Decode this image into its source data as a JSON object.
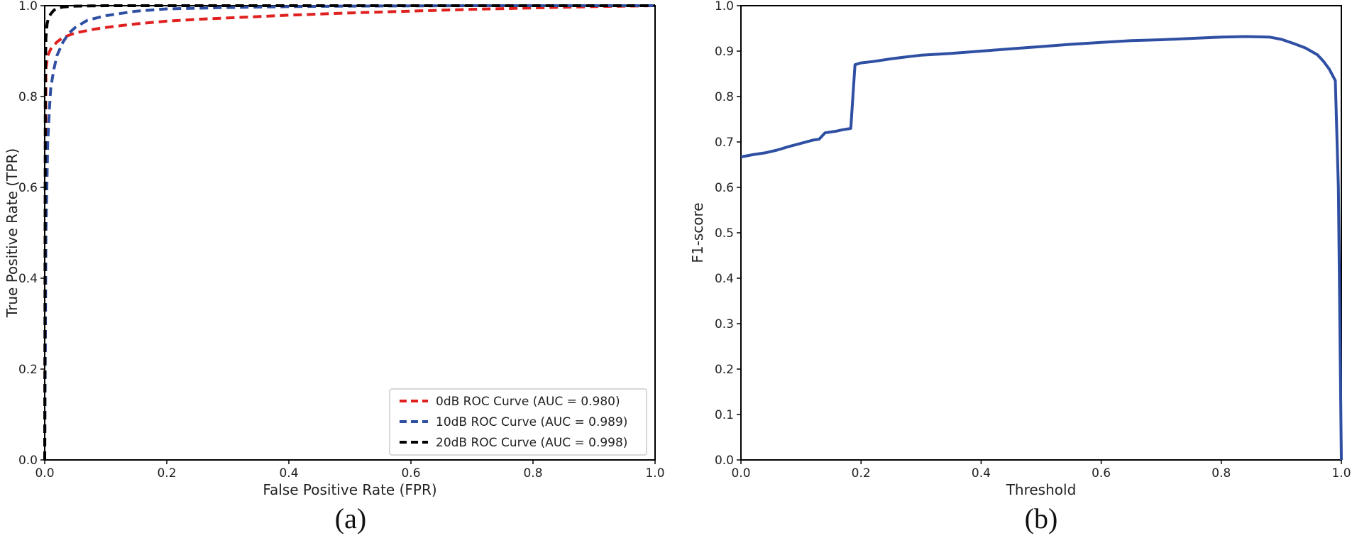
{
  "chart_data": [
    {
      "type": "line",
      "caption": "(a)",
      "xlabel": "False Positive Rate (FPR)",
      "ylabel": "True Positive Rate (TPR)",
      "xlim": [
        0,
        1
      ],
      "ylim": [
        0,
        1
      ],
      "xticks": [
        "0.0",
        "0.2",
        "0.4",
        "0.6",
        "0.8",
        "1.0"
      ],
      "yticks": [
        "0.0",
        "0.2",
        "0.4",
        "0.6",
        "0.8",
        "1.0"
      ],
      "grid": false,
      "legend_position": "lower-right",
      "series": [
        {
          "name": "0dB ROC Curve (AUC = 0.980)",
          "color": "#e0201f",
          "dash": "dashed",
          "x": [
            0,
            0.002,
            0.005,
            0.01,
            0.02,
            0.03,
            0.05,
            0.08,
            0.1,
            0.15,
            0.2,
            0.25,
            0.3,
            0.4,
            0.5,
            0.6,
            0.7,
            0.8,
            0.9,
            1.0
          ],
          "y": [
            0,
            0.86,
            0.89,
            0.905,
            0.92,
            0.93,
            0.94,
            0.948,
            0.952,
            0.96,
            0.966,
            0.97,
            0.973,
            0.979,
            0.984,
            0.988,
            0.992,
            0.995,
            0.998,
            1.0
          ]
        },
        {
          "name": "10dB ROC Curve (AUC = 0.989)",
          "color": "#2f4fa3",
          "dash": "dashed",
          "x": [
            0,
            0.002,
            0.005,
            0.008,
            0.01,
            0.015,
            0.02,
            0.03,
            0.04,
            0.05,
            0.07,
            0.1,
            0.15,
            0.2,
            0.3,
            0.4,
            0.5,
            0.7,
            1.0
          ],
          "y": [
            0,
            0.5,
            0.7,
            0.78,
            0.82,
            0.86,
            0.89,
            0.92,
            0.94,
            0.952,
            0.968,
            0.978,
            0.988,
            0.993,
            0.996,
            0.998,
            0.999,
            1.0,
            1.0
          ]
        },
        {
          "name": "20dB ROC Curve (AUC = 0.998)",
          "color": "#000000",
          "dash": "dashed",
          "x": [
            0,
            0.001,
            0.002,
            0.004,
            0.006,
            0.01,
            0.015,
            0.02,
            0.03,
            0.05,
            0.1,
            0.3,
            1.0
          ],
          "y": [
            0,
            0.85,
            0.93,
            0.96,
            0.972,
            0.982,
            0.99,
            0.994,
            0.997,
            0.999,
            1.0,
            1.0,
            1.0
          ]
        }
      ]
    },
    {
      "type": "line",
      "caption": "(b)",
      "xlabel": "Threshold",
      "ylabel": "F1-score",
      "xlim": [
        0,
        1
      ],
      "ylim": [
        0,
        1
      ],
      "xticks": [
        "0.0",
        "0.2",
        "0.4",
        "0.6",
        "0.8",
        "1.0"
      ],
      "yticks": [
        "0.0",
        "0.1",
        "0.2",
        "0.3",
        "0.4",
        "0.5",
        "0.6",
        "0.7",
        "0.8",
        "0.9",
        "1.0"
      ],
      "grid": false,
      "series": [
        {
          "name": "",
          "color": "#2f4fa3",
          "dash": "solid",
          "x": [
            0,
            0.02,
            0.04,
            0.06,
            0.08,
            0.1,
            0.12,
            0.13,
            0.14,
            0.15,
            0.16,
            0.17,
            0.18,
            0.183,
            0.19,
            0.2,
            0.22,
            0.25,
            0.28,
            0.3,
            0.35,
            0.4,
            0.45,
            0.5,
            0.55,
            0.6,
            0.65,
            0.7,
            0.75,
            0.8,
            0.84,
            0.88,
            0.9,
            0.92,
            0.94,
            0.96,
            0.97,
            0.98,
            0.99,
            0.995,
            1.0
          ],
          "y": [
            0.667,
            0.672,
            0.676,
            0.682,
            0.69,
            0.697,
            0.704,
            0.706,
            0.72,
            0.722,
            0.724,
            0.727,
            0.729,
            0.73,
            0.87,
            0.874,
            0.877,
            0.883,
            0.888,
            0.891,
            0.895,
            0.9,
            0.905,
            0.91,
            0.915,
            0.919,
            0.923,
            0.925,
            0.928,
            0.931,
            0.932,
            0.931,
            0.926,
            0.917,
            0.907,
            0.892,
            0.878,
            0.86,
            0.835,
            0.6,
            0.0
          ]
        }
      ]
    }
  ]
}
